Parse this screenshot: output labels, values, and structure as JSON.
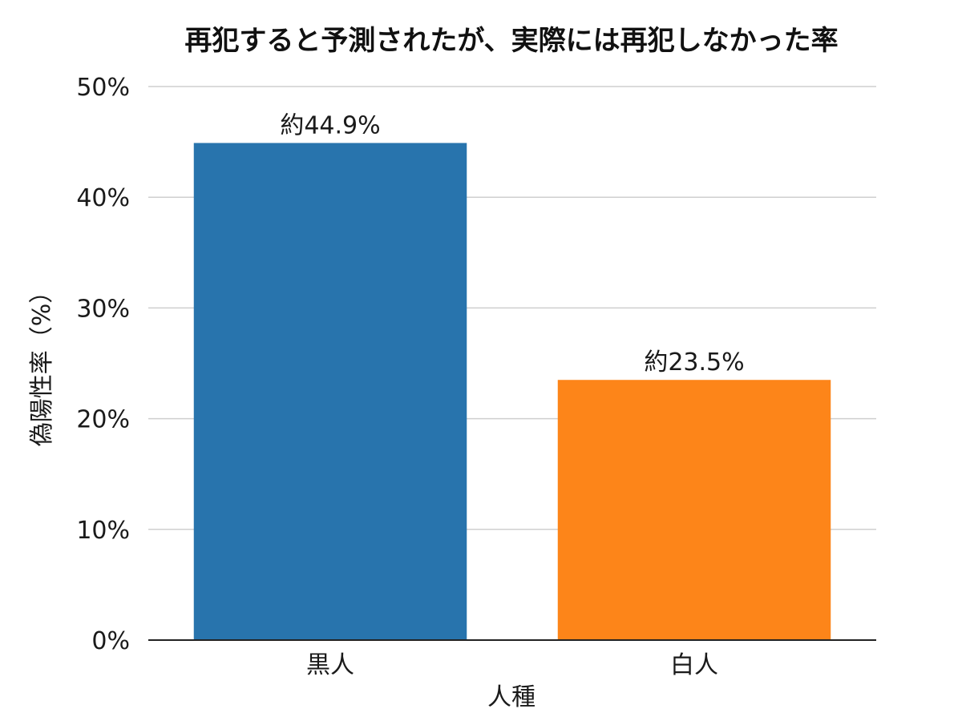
{
  "chart_data": {
    "type": "bar",
    "title": "再犯すると予測されたが、実際には再犯しなかった率",
    "xlabel": "人種",
    "ylabel": "偽陽性率（%）",
    "categories": [
      "黒人",
      "白人"
    ],
    "values": [
      44.9,
      23.5
    ],
    "data_labels": [
      "約44.9%",
      "約23.5%"
    ],
    "colors": [
      "#2874ad",
      "#fd8519"
    ],
    "ylim": [
      0,
      50
    ],
    "yticks": [
      0,
      10,
      20,
      30,
      40,
      50
    ],
    "ytick_labels": [
      "0%",
      "10%",
      "20%",
      "30%",
      "40%",
      "50%"
    ],
    "grid": true,
    "legend": "none"
  }
}
